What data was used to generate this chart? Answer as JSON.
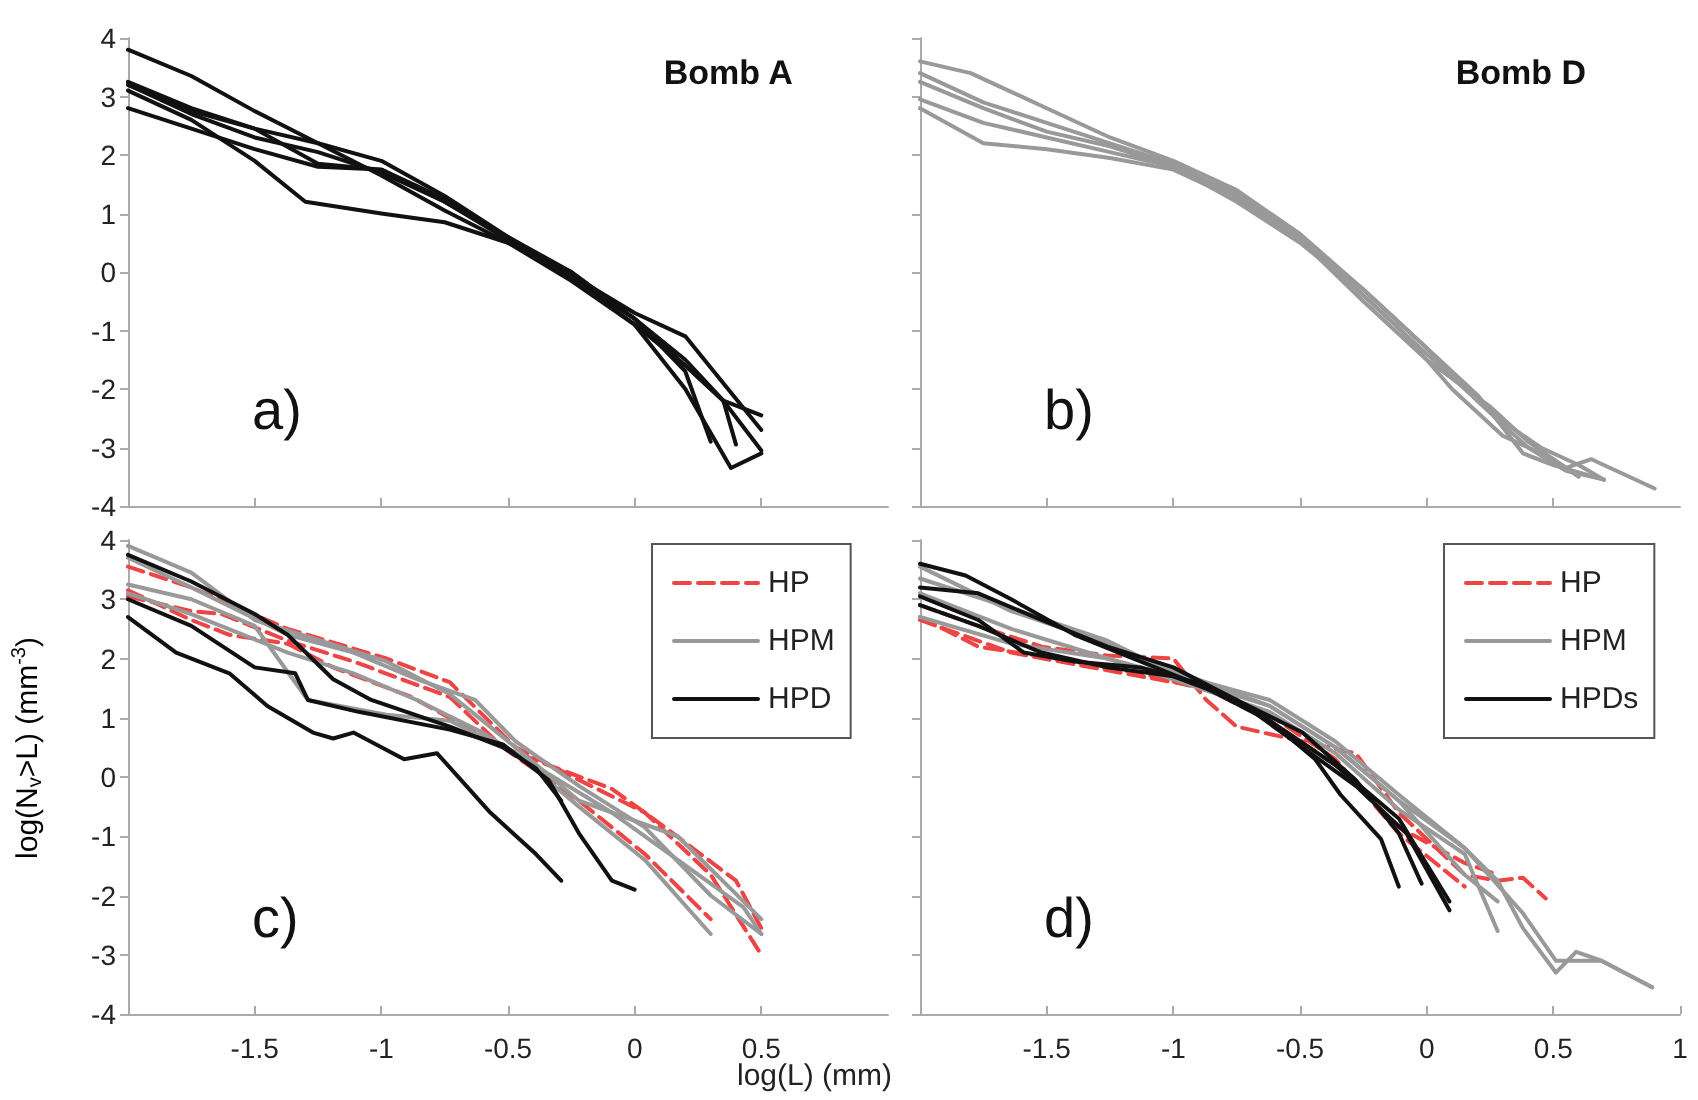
{
  "chart_data": [
    {
      "type": "line",
      "title": "Bomb A",
      "annotations": [
        "a)"
      ],
      "xlim": [
        -2,
        1
      ],
      "ylim": [
        -4,
        4
      ],
      "xticks": [
        -1.5,
        -1,
        -0.5,
        0,
        0.5
      ],
      "yticks": [
        -4,
        -3,
        -2,
        -1,
        0,
        1,
        2,
        3,
        4
      ],
      "tick_labels": "y",
      "grid": false,
      "legend": false,
      "series": [
        {
          "color": "#111111",
          "x": [
            -2,
            -1.75,
            -1.5,
            -1.25,
            -1,
            -0.75,
            -0.5,
            -0.25,
            0,
            0.2,
            0.35,
            0.5
          ],
          "values": [
            3.8,
            3.35,
            2.75,
            2.2,
            1.65,
            1.05,
            0.5,
            -0.15,
            -0.9,
            -1.6,
            -2.2,
            -2.45
          ]
        },
        {
          "color": "#111111",
          "x": [
            -2,
            -1.75,
            -1.5,
            -1.25,
            -1,
            -0.75,
            -0.5,
            -0.25,
            0,
            0.2,
            0.35,
            0.5
          ],
          "values": [
            3.25,
            2.8,
            2.45,
            2.2,
            1.9,
            1.3,
            0.6,
            -0.05,
            -0.7,
            -1.1,
            -1.9,
            -2.7
          ]
        },
        {
          "color": "#111111",
          "x": [
            -2,
            -1.75,
            -1.5,
            -1.25,
            -1,
            -0.75,
            -0.5,
            -0.25,
            0,
            0.2,
            0.35,
            0.4
          ],
          "values": [
            3.2,
            2.7,
            2.3,
            2.05,
            1.7,
            1.2,
            0.55,
            -0.1,
            -0.8,
            -1.5,
            -2.2,
            -2.95
          ]
        },
        {
          "color": "#111111",
          "x": [
            -2,
            -1.75,
            -1.5,
            -1.3,
            -1,
            -0.75,
            -0.5,
            -0.25,
            0,
            0.2,
            0.3
          ],
          "values": [
            3.1,
            2.6,
            1.9,
            1.2,
            1.0,
            0.85,
            0.5,
            0,
            -0.8,
            -1.7,
            -2.9
          ]
        },
        {
          "color": "#111111",
          "x": [
            -2,
            -1.75,
            -1.5,
            -1.25,
            -1,
            -0.75,
            -0.5,
            -0.25,
            0,
            0.2,
            0.35,
            0.5
          ],
          "values": [
            2.8,
            2.45,
            2.1,
            1.8,
            1.75,
            1.2,
            0.6,
            0,
            -0.8,
            -1.6,
            -2.2,
            -3.05
          ]
        },
        {
          "color": "#111111",
          "x": [
            -2,
            -1.75,
            -1.5,
            -1.25,
            -1,
            -0.75,
            -0.5,
            -0.25,
            0,
            0.2,
            0.38,
            0.5
          ],
          "values": [
            3.2,
            2.75,
            2.45,
            1.85,
            1.75,
            1.25,
            0.55,
            -0.1,
            -0.9,
            -2.0,
            -3.35,
            -3.1
          ]
        }
      ]
    },
    {
      "type": "line",
      "title": "Bomb D",
      "annotations": [
        "b)"
      ],
      "xlim": [
        -2,
        1
      ],
      "ylim": [
        -4,
        4
      ],
      "xticks": [
        -1.5,
        -1,
        -0.5,
        0,
        0.5
      ],
      "yticks": [
        -4,
        -3,
        -2,
        -1,
        0,
        1,
        2,
        3,
        4
      ],
      "tick_labels": false,
      "grid": false,
      "legend": false,
      "series": [
        {
          "color": "#999999",
          "x": [
            -2,
            -1.8,
            -1.5,
            -1.25,
            -1,
            -0.75,
            -0.5,
            -0.25,
            0,
            0.2,
            0.38,
            0.5,
            0.7
          ],
          "values": [
            3.6,
            3.4,
            2.8,
            2.3,
            1.9,
            1.4,
            0.65,
            -0.3,
            -1.3,
            -2.1,
            -3.1,
            -3.3,
            -3.55
          ]
        },
        {
          "color": "#999999",
          "x": [
            -2,
            -1.75,
            -1.5,
            -1.25,
            -1,
            -0.75,
            -0.5,
            -0.25,
            0,
            0.25,
            0.4,
            0.55,
            0.65,
            0.9
          ],
          "values": [
            3.4,
            2.9,
            2.55,
            2.2,
            1.85,
            1.3,
            0.55,
            -0.5,
            -1.5,
            -2.3,
            -2.9,
            -3.35,
            -3.2,
            -3.7
          ]
        },
        {
          "color": "#999999",
          "x": [
            -2,
            -1.75,
            -1.5,
            -1.25,
            -1,
            -0.75,
            -0.5,
            -0.25,
            0,
            0.25,
            0.45,
            0.6,
            0.7
          ],
          "values": [
            3.25,
            2.8,
            2.4,
            2.15,
            1.8,
            1.35,
            0.6,
            -0.4,
            -1.4,
            -2.4,
            -3.0,
            -3.3,
            -3.55
          ]
        },
        {
          "color": "#999999",
          "x": [
            -2,
            -1.75,
            -1.5,
            -1.25,
            -1,
            -0.75,
            -0.5,
            -0.3,
            -0.1,
            0.1,
            0.3,
            0.5,
            0.6
          ],
          "values": [
            2.95,
            2.55,
            2.3,
            2.05,
            1.8,
            1.2,
            0.5,
            -0.2,
            -1.0,
            -2.0,
            -2.8,
            -3.2,
            -3.5
          ]
        },
        {
          "color": "#999999",
          "x": [
            -2,
            -1.75,
            -1.5,
            -1.25,
            -1,
            -0.75,
            -0.5,
            -0.25,
            0,
            0.2,
            0.4,
            0.55,
            0.7
          ],
          "values": [
            2.8,
            2.2,
            2.1,
            1.95,
            1.75,
            1.25,
            0.6,
            -0.3,
            -1.3,
            -2.2,
            -3.0,
            -3.4,
            -3.55
          ]
        }
      ]
    },
    {
      "type": "line",
      "annotations": [
        "c)"
      ],
      "xlabel": "log(L) (mm)",
      "ylabel": "log(N$_{v}$>L) (mm$^{-3}$)",
      "xlim": [
        -2,
        1
      ],
      "ylim": [
        -4,
        4
      ],
      "xticks": [
        -1.5,
        -1,
        -0.5,
        0,
        0.5
      ],
      "yticks": [
        -4,
        -3,
        -2,
        -1,
        0,
        1,
        2,
        3,
        4
      ],
      "grid": false,
      "legend": "top right",
      "series": [
        {
          "name": "HP",
          "color": "#ee4444",
          "line_style": "dashed",
          "x": [
            -2,
            -1.75,
            -1.37,
            -0.98,
            -0.73,
            -0.47,
            -0.22,
            0.04,
            0.3,
            0.5
          ],
          "values": [
            3.55,
            3.2,
            2.5,
            2.0,
            1.6,
            0.5,
            -0.05,
            -0.6,
            -1.65,
            -3.0
          ]
        },
        {
          "color": "#ee4444",
          "line_style": "dashed",
          "x": [
            -2,
            -1.75,
            -1.63,
            -1.37,
            -1.11,
            -0.73,
            -0.52,
            -0.34,
            -0.09,
            0.12,
            0.4,
            0.5
          ],
          "values": [
            3.05,
            2.8,
            2.75,
            2.3,
            1.95,
            1.35,
            0.5,
            0.2,
            -0.2,
            -0.85,
            -1.75,
            -2.55
          ]
        },
        {
          "color": "#ee4444",
          "line_style": "dashed",
          "x": [
            -2,
            -1.75,
            -1.6,
            -1.37,
            -1.19,
            -0.88,
            -0.52,
            -0.22,
            0.04,
            0.3
          ],
          "values": [
            3.15,
            2.65,
            2.4,
            2.25,
            1.85,
            1.35,
            0.5,
            -0.4,
            -1.3,
            -2.4
          ]
        },
        {
          "name": "HPM",
          "color": "#999999",
          "x": [
            -2,
            -1.75,
            -1.5,
            -1.24,
            -0.98,
            -0.73,
            -0.47,
            -0.22,
            0.17,
            0.5
          ],
          "values": [
            3.9,
            3.45,
            2.65,
            2.3,
            1.95,
            1.4,
            0.5,
            -0.4,
            -1.0,
            -2.4
          ]
        },
        {
          "color": "#999999",
          "x": [
            -2,
            -1.75,
            -1.37,
            -1.11,
            -0.86,
            -0.63,
            -0.47,
            -0.22,
            0.04,
            0.3,
            0.5
          ],
          "values": [
            3.7,
            3.2,
            2.4,
            2.1,
            1.65,
            1.3,
            0.6,
            -0.15,
            -0.85,
            -2.0,
            -2.65
          ]
        },
        {
          "color": "#999999",
          "x": [
            -2,
            -1.75,
            -1.5,
            -1.29,
            -0.98,
            -0.73,
            -0.47,
            -0.22,
            0.04,
            0.3
          ],
          "values": [
            3.25,
            3.0,
            2.55,
            1.3,
            1.05,
            0.95,
            0.4,
            -0.5,
            -1.4,
            -2.65
          ]
        },
        {
          "color": "#999999",
          "x": [
            -2,
            -1.75,
            -1.37,
            -1.11,
            -0.86,
            -0.6,
            -0.34,
            -0.09,
            0.17,
            0.43,
            0.5
          ],
          "values": [
            3.1,
            2.75,
            2.1,
            1.75,
            1.3,
            0.75,
            0.05,
            -0.6,
            -1.4,
            -2.2,
            -2.65
          ]
        },
        {
          "name": "HPD",
          "color": "#111111",
          "x": [
            -2,
            -1.75,
            -1.5,
            -1.37,
            -1.19,
            -1.04,
            -0.73,
            -0.52,
            -0.39,
            -0.29
          ],
          "values": [
            3.75,
            3.3,
            2.75,
            2.4,
            1.65,
            1.3,
            0.85,
            0.5,
            0.15,
            -0.4
          ]
        },
        {
          "color": "#111111",
          "x": [
            -2,
            -1.75,
            -1.5,
            -1.34,
            -1.29,
            -1.09,
            -0.73,
            -0.52,
            -0.34,
            -0.22,
            -0.09,
            0
          ],
          "values": [
            3.0,
            2.55,
            1.85,
            1.75,
            1.3,
            1.1,
            0.8,
            0.55,
            -0.05,
            -0.95,
            -1.75,
            -1.9
          ]
        },
        {
          "color": "#111111",
          "x": [
            -2,
            -1.81,
            -1.6,
            -1.45,
            -1.27,
            -1.19,
            -1.11,
            -0.91,
            -0.78,
            -0.57,
            -0.39,
            -0.29
          ],
          "values": [
            2.7,
            2.1,
            1.75,
            1.2,
            0.75,
            0.65,
            0.75,
            0.3,
            0.4,
            -0.6,
            -1.3,
            -1.75
          ]
        }
      ]
    },
    {
      "type": "line",
      "annotations": [
        "d)"
      ],
      "xlim": [
        -2,
        1
      ],
      "ylim": [
        -4,
        4
      ],
      "xticks": [
        -1.5,
        -1,
        -0.5,
        0,
        0.5,
        1
      ],
      "yticks": [
        -4,
        -3,
        -2,
        -1,
        0,
        1,
        2,
        3,
        4
      ],
      "tick_labels": "x",
      "grid": false,
      "legend": "top right",
      "series": [
        {
          "name": "HP",
          "color": "#ee4444",
          "line_style": "dashed",
          "x": [
            -2,
            -1.77,
            -1.52,
            -1.26,
            -1.0,
            -0.87,
            -0.75,
            -0.49,
            -0.28,
            -0.11,
            0.15,
            0.28,
            0.38,
            0.47
          ],
          "values": [
            2.9,
            2.55,
            2.2,
            2.05,
            2.0,
            1.3,
            0.85,
            0.6,
            0.4,
            -0.6,
            -1.65,
            -1.75,
            -1.7,
            -2.05
          ]
        },
        {
          "color": "#ee4444",
          "line_style": "dashed",
          "x": [
            -2,
            -1.77,
            -1.47,
            -1.13,
            -0.85,
            -0.62,
            -0.36,
            -0.11,
            0.15,
            0.28
          ],
          "values": [
            2.7,
            2.2,
            2.0,
            1.75,
            1.45,
            0.95,
            0.2,
            -0.85,
            -1.45,
            -1.65
          ]
        },
        {
          "color": "#ee4444",
          "line_style": "dashed",
          "x": [
            -2,
            -1.64,
            -1.26,
            -0.87,
            -0.62,
            -0.36,
            -0.11,
            0.15
          ],
          "values": [
            2.65,
            2.1,
            1.8,
            1.5,
            1.05,
            0.3,
            -0.95,
            -1.85
          ]
        },
        {
          "name": "HPM",
          "color": "#999999",
          "x": [
            -2,
            -1.64,
            -1.26,
            -1.0,
            -0.62,
            -0.36,
            -0.11,
            0.15,
            0.28,
            0.38,
            0.51,
            0.59,
            0.69,
            0.89
          ],
          "values": [
            3.35,
            2.85,
            2.3,
            1.75,
            1.3,
            0.6,
            -0.3,
            -1.2,
            -1.75,
            -2.55,
            -3.3,
            -2.95,
            -3.1,
            -3.55
          ]
        },
        {
          "color": "#999999",
          "x": [
            -2,
            -1.64,
            -1.26,
            -1.0,
            -0.62,
            -0.36,
            -0.11,
            0.15,
            0.38,
            0.51,
            0.69,
            0.89
          ],
          "values": [
            3.55,
            2.8,
            2.25,
            1.8,
            1.2,
            0.5,
            -0.4,
            -1.2,
            -2.3,
            -3.1,
            -3.1,
            -3.55
          ]
        },
        {
          "color": "#999999",
          "x": [
            -2,
            -1.64,
            -1.26,
            -1.0,
            -0.62,
            -0.36,
            -0.11,
            0.15,
            0.28
          ],
          "values": [
            3.1,
            2.5,
            2.0,
            1.65,
            1.1,
            0.4,
            -0.55,
            -1.3,
            -2.6
          ]
        },
        {
          "color": "#999999",
          "x": [
            -2,
            -1.64,
            -1.26,
            -1.0,
            -0.62,
            -0.36,
            -0.11,
            0.15,
            0.28
          ],
          "values": [
            2.7,
            2.25,
            2.0,
            1.7,
            1.2,
            0.5,
            -0.4,
            -1.65,
            -2.1
          ]
        },
        {
          "name": "HPDs",
          "color": "#111111",
          "x": [
            -2,
            -1.82,
            -1.64,
            -1.39,
            -1.13,
            -0.87,
            -0.62,
            -0.44,
            -0.34,
            -0.18,
            -0.11
          ],
          "values": [
            3.6,
            3.4,
            3.0,
            2.4,
            1.95,
            1.5,
            0.95,
            0.3,
            -0.3,
            -1.05,
            -1.85
          ]
        },
        {
          "color": "#111111",
          "x": [
            -2,
            -1.77,
            -1.52,
            -1.26,
            -1.0,
            -0.75,
            -0.49,
            -0.28,
            -0.11,
            -0.02
          ],
          "values": [
            3.2,
            3.1,
            2.65,
            2.2,
            1.85,
            1.3,
            0.75,
            -0.05,
            -0.95,
            -1.8
          ]
        },
        {
          "color": "#111111",
          "x": [
            -2,
            -1.77,
            -1.59,
            -1.39,
            -1.13,
            -0.87,
            -0.62,
            -0.36,
            -0.11,
            0.09
          ],
          "values": [
            3.05,
            2.65,
            2.1,
            1.95,
            1.85,
            1.55,
            0.95,
            0.2,
            -0.7,
            -2.1
          ]
        },
        {
          "color": "#111111",
          "x": [
            -2,
            -1.77,
            -1.52,
            -1.26,
            -1.0,
            -0.75,
            -0.49,
            -0.28,
            -0.08,
            0.09
          ],
          "values": [
            2.9,
            2.55,
            2.1,
            1.85,
            1.7,
            1.3,
            0.5,
            -0.15,
            -0.95,
            -2.25
          ]
        }
      ]
    }
  ]
}
